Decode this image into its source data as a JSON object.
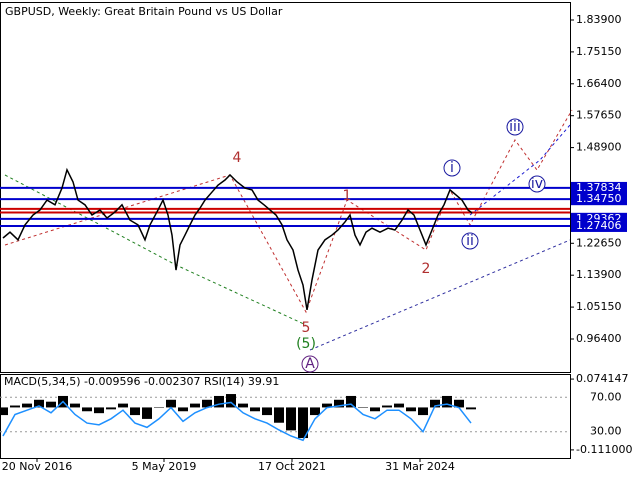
{
  "chart_data": [
    {
      "type": "line",
      "title": "GBPUSD, Weekly:  Great Britain Pound vs US Dollar",
      "series": [
        {
          "name": "GBPUSD",
          "color": "#000000",
          "x": [
            3,
            10,
            18,
            25,
            33,
            40,
            47,
            55,
            62,
            67,
            73,
            78,
            85,
            92,
            100,
            107,
            115,
            122,
            130,
            138,
            145,
            150,
            158,
            163,
            168,
            172,
            176,
            180,
            185,
            190,
            195,
            200,
            205,
            212,
            218,
            225,
            230,
            237,
            245,
            252,
            258,
            264,
            270,
            276,
            282,
            287,
            293,
            298,
            303,
            307,
            312,
            318,
            325,
            332,
            338,
            345,
            350,
            355,
            360,
            366,
            372,
            380,
            388,
            395,
            402,
            408,
            414,
            420,
            426,
            432,
            438,
            444,
            450,
            456,
            462,
            468,
            472
          ],
          "values": [
            1.241,
            1.257,
            1.236,
            1.277,
            1.304,
            1.318,
            1.345,
            1.332,
            1.378,
            1.428,
            1.395,
            1.345,
            1.332,
            1.304,
            1.318,
            1.296,
            1.312,
            1.332,
            1.29,
            1.277,
            1.236,
            1.277,
            1.318,
            1.345,
            1.304,
            1.249,
            1.153,
            1.222,
            1.249,
            1.277,
            1.304,
            1.323,
            1.345,
            1.367,
            1.386,
            1.4,
            1.414,
            1.395,
            1.378,
            1.373,
            1.345,
            1.332,
            1.318,
            1.304,
            1.277,
            1.236,
            1.208,
            1.153,
            1.112,
            1.044,
            1.126,
            1.208,
            1.236,
            1.249,
            1.263,
            1.285,
            1.304,
            1.249,
            1.222,
            1.257,
            1.268,
            1.257,
            1.268,
            1.263,
            1.29,
            1.318,
            1.304,
            1.263,
            1.222,
            1.263,
            1.304,
            1.332,
            1.373,
            1.359,
            1.345,
            1.318,
            1.31
          ]
        }
      ],
      "levels": [
        {
          "value": 1.37834,
          "label": "1.37834",
          "color": "#0000cc"
        },
        {
          "value": 1.3475,
          "label": "1.34750",
          "color": "#0000cc"
        },
        {
          "value": 1.321,
          "color": "#cc0000"
        },
        {
          "value": 1.311,
          "color": "#cc0000"
        },
        {
          "value": 1.29362,
          "label": "1.29362",
          "color": "#0000cc"
        },
        {
          "value": 1.27406,
          "label": "1.27406",
          "color": "#0000cc"
        }
      ],
      "annotations": [
        {
          "text": "4",
          "color": "#b03030"
        },
        {
          "text": "1",
          "color": "#b03030"
        },
        {
          "text": "2",
          "color": "#b03030"
        },
        {
          "text": "5",
          "color": "#b03030"
        },
        {
          "text": "(5)",
          "color": "#208020"
        },
        {
          "text": "A",
          "color": "#602080"
        },
        {
          "text": "i",
          "color": "#1a1aa0"
        },
        {
          "text": "ii",
          "color": "#1a1aa0"
        },
        {
          "text": "iii",
          "color": "#1a1aa0"
        },
        {
          "text": "iv",
          "color": "#1a1aa0"
        }
      ],
      "xlim": [
        0,
        570
      ],
      "xticks": [
        {
          "value": 37,
          "label": "20 Nov 2016"
        },
        {
          "value": 164,
          "label": "5 May 2019"
        },
        {
          "value": 292,
          "label": "17 Oct 2021"
        },
        {
          "value": 420,
          "label": "31 Mar 2024"
        }
      ],
      "ylim": [
        0.8762,
        1.8856
      ],
      "yticks": [
        {
          "value": 1.839,
          "label": "1.83900"
        },
        {
          "value": 1.7515,
          "label": "1.75150"
        },
        {
          "value": 1.664,
          "label": "1.66400"
        },
        {
          "value": 1.5765,
          "label": "1.57650"
        },
        {
          "value": 1.489,
          "label": "1.48900"
        },
        {
          "value": 1.2265,
          "label": "1.22650"
        },
        {
          "value": 1.139,
          "label": "1.13900"
        },
        {
          "value": 1.0515,
          "label": "1.05150"
        },
        {
          "value": 0.964,
          "label": "0.96400"
        }
      ]
    },
    {
      "type": "indicator",
      "title": "MACD(5,34,5) -0.009596 -0.002307 RSI(14) 39.91",
      "x": [
        3,
        15,
        27,
        39,
        51,
        63,
        75,
        87,
        99,
        111,
        123,
        135,
        147,
        159,
        171,
        183,
        195,
        207,
        219,
        231,
        243,
        255,
        267,
        279,
        291,
        303,
        315,
        327,
        339,
        351,
        363,
        375,
        387,
        399,
        411,
        423,
        435,
        447,
        459,
        471
      ],
      "series": [
        {
          "name": "MACD",
          "color": "#000000",
          "values": [
            -0.02,
            0.005,
            0.01,
            0.02,
            0.015,
            0.03,
            0.01,
            -0.01,
            -0.015,
            -0.005,
            0.01,
            -0.02,
            -0.03,
            0.0,
            0.02,
            -0.01,
            0.01,
            0.02,
            0.03,
            0.035,
            0.01,
            -0.01,
            -0.02,
            -0.04,
            -0.06,
            -0.08,
            -0.02,
            0.01,
            0.02,
            0.03,
            0.0,
            -0.01,
            0.005,
            0.01,
            -0.01,
            -0.02,
            0.02,
            0.03,
            0.02,
            -0.005
          ]
        },
        {
          "name": "RSI",
          "color": "#1e90ff",
          "axis": "y2",
          "values": [
            25,
            50,
            55,
            60,
            52,
            65,
            50,
            40,
            38,
            45,
            55,
            40,
            35,
            45,
            58,
            42,
            52,
            58,
            62,
            64,
            52,
            45,
            40,
            32,
            25,
            20,
            45,
            58,
            60,
            62,
            50,
            45,
            55,
            55,
            45,
            30,
            60,
            62,
            58,
            40
          ]
        }
      ],
      "xlim": [
        0,
        570
      ],
      "ylim": [
        -0.1322,
        0.0874
      ],
      "yticks": [
        0.074147,
        {
          "value": -0.111,
          "label": "-0.111000"
        }
      ],
      "y2lim": [
        -0.6,
        97.1
      ],
      "y2ticks": [
        {
          "value": 70,
          "label": "70.00"
        },
        {
          "value": 30,
          "label": "30.00"
        }
      ]
    }
  ]
}
